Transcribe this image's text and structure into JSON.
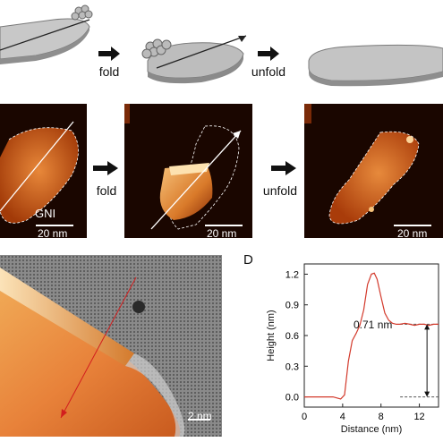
{
  "top_row": {
    "step1_label": "fold",
    "step2_label": "unfold"
  },
  "middle_row": {
    "panel1": {
      "region_label": "GNI",
      "scale_label": "20 nm"
    },
    "panel2": {
      "scale_label": "20 nm"
    },
    "panel3": {
      "scale_label": "20 nm"
    },
    "step1_label": "fold",
    "step2_label": "unfold"
  },
  "panel_c": {
    "scale_label": "2 nm"
  },
  "panel_d": {
    "letter": "D",
    "annotation": "0.71 nm"
  },
  "chart_data": {
    "type": "line",
    "xlabel": "Distance (nm)",
    "ylabel": "Height (nm)",
    "xlim": [
      0,
      14
    ],
    "ylim": [
      -0.1,
      1.3
    ],
    "xticks": [
      "0",
      "4",
      "8",
      "12"
    ],
    "xtick_values": [
      0,
      4,
      8,
      12
    ],
    "yticks": [
      "0.0",
      "0.3",
      "0.6",
      "0.9",
      "1.2"
    ],
    "ytick_values": [
      0.0,
      0.3,
      0.6,
      0.9,
      1.2
    ],
    "series": [
      {
        "color": "#d33a2c",
        "x": [
          0,
          1,
          2,
          3,
          3.8,
          4.2,
          4.6,
          5.0,
          5.4,
          5.8,
          6.2,
          6.6,
          7.0,
          7.3,
          7.6,
          8.0,
          8.4,
          8.8,
          9.2,
          9.6,
          10.0,
          10.5,
          11.0,
          11.5,
          12.0,
          12.5,
          13.0,
          13.5,
          14.0
        ],
        "y": [
          0.0,
          0.0,
          0.0,
          0.0,
          -0.02,
          0.02,
          0.35,
          0.55,
          0.62,
          0.7,
          0.85,
          1.1,
          1.2,
          1.21,
          1.15,
          0.98,
          0.82,
          0.75,
          0.72,
          0.71,
          0.71,
          0.72,
          0.71,
          0.7,
          0.71,
          0.71,
          0.7,
          0.71,
          0.71
        ]
      }
    ],
    "reference_lines": [
      0.0,
      0.71
    ],
    "grid": false
  },
  "colors": {
    "afm_dark": "#1a0600",
    "afm_mid": "#b8440c",
    "afm_light": "#f4b060",
    "curve": "#d33a2c"
  }
}
